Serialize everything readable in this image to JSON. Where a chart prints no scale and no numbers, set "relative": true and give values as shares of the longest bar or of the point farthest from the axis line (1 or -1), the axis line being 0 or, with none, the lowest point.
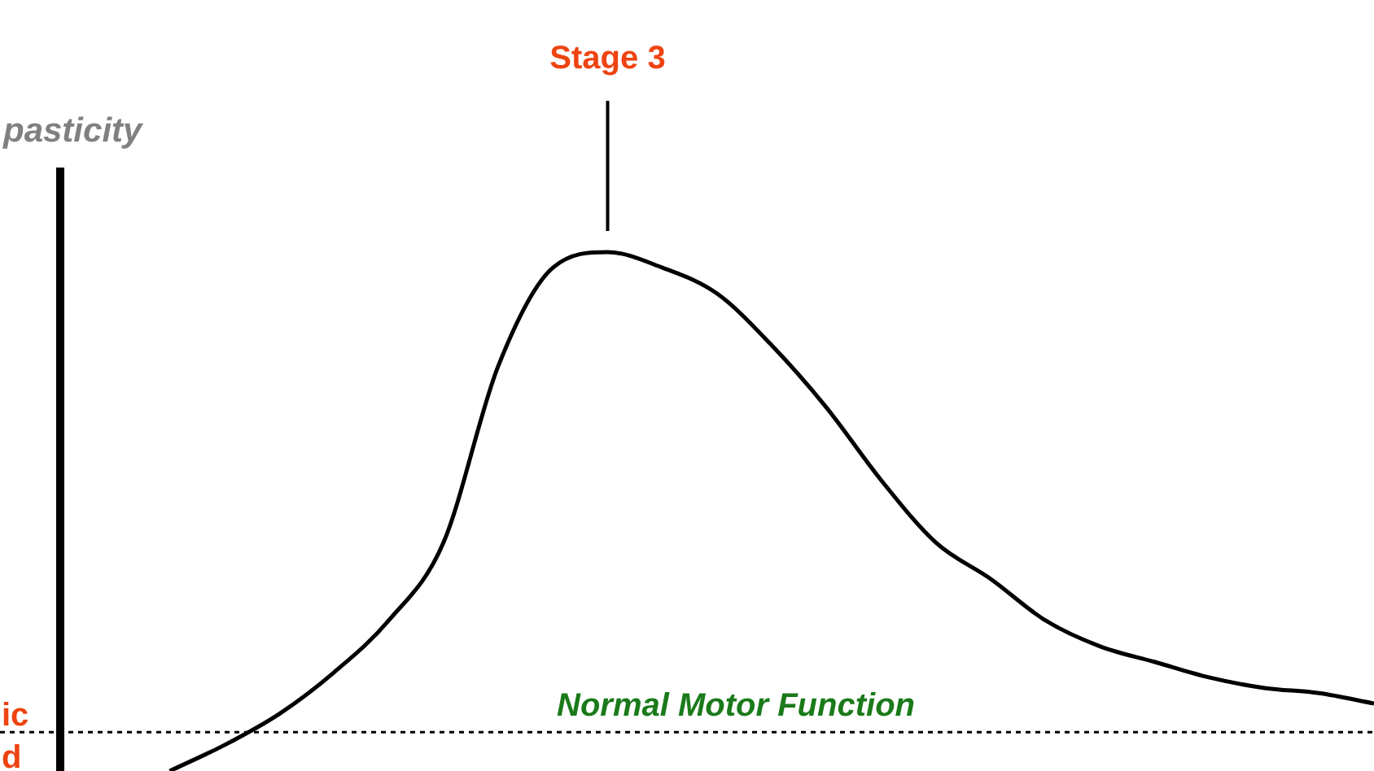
{
  "chart_data": {
    "type": "line",
    "relative": true,
    "ylabel": "pasticity",
    "categories": [
      null,
      null,
      null,
      null,
      null,
      null,
      null,
      null,
      null,
      null,
      null,
      null,
      null,
      null,
      null,
      null,
      null,
      null,
      null,
      null,
      null,
      null,
      null,
      null,
      null
    ],
    "series": [
      {
        "color": "#000000",
        "values": [
          null,
          null,
          0,
          0.05,
          0.11,
          0.19,
          0.29,
          0.44,
          0.78,
          0.97,
          1,
          0.97,
          0.92,
          0.82,
          0.7,
          0.56,
          0.44,
          0.37,
          0.29,
          0.24,
          0.21,
          0.18,
          0.16,
          0.15,
          0.13
        ]
      }
    ],
    "ref_lines": [
      {
        "axis": "y",
        "value": 0.075,
        "label": "Normal Motor Function",
        "color": "#000000",
        "line_style": "dotted"
      }
    ],
    "annotations": [
      "Stage 3",
      "ic",
      "d"
    ],
    "marker": "none",
    "line_style": "solid",
    "legend": false
  }
}
